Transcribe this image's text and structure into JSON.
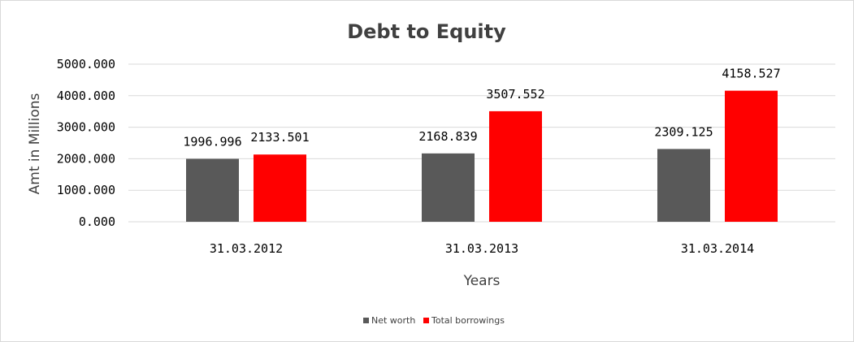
{
  "chart_data": {
    "type": "bar",
    "title": "Debt to Equity",
    "xlabel": "Years",
    "ylabel": "Amt in Millions",
    "categories": [
      "31.03.2012",
      "31.03.2013",
      "31.03.2014"
    ],
    "series": [
      {
        "name": "Net worth",
        "color": "#595959",
        "values": [
          1996.996,
          2168.839,
          2309.125
        ],
        "labels": [
          "1996.996",
          "2168.839",
          "2309.125"
        ]
      },
      {
        "name": "Total borrowings",
        "color": "#ff0000",
        "values": [
          2133.501,
          3507.552,
          4158.527
        ],
        "labels": [
          "2133.501",
          "3507.552",
          "4158.527"
        ]
      }
    ],
    "ylim": [
      0,
      5000
    ],
    "yticks": [
      0,
      1000,
      2000,
      3000,
      4000,
      5000
    ],
    "ytick_labels": [
      "0.000",
      "1000.000",
      "2000.000",
      "3000.000",
      "4000.000",
      "5000.000"
    ],
    "grid": true,
    "legend_position": "bottom"
  }
}
